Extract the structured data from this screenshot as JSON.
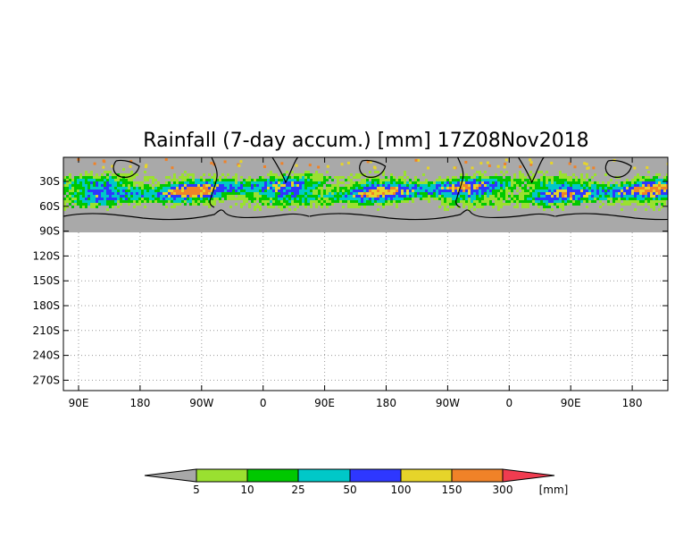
{
  "title": "Rainfall (7-day accum.) [mm] 17Z08Nov2018",
  "map": {
    "lat_ticks": [
      "30S",
      "60S",
      "90S",
      "120S",
      "150S",
      "180S",
      "210S",
      "240S",
      "270S"
    ],
    "lon_ticks": [
      "90E",
      "180",
      "90W",
      "0",
      "90E",
      "180",
      "90W",
      "0",
      "90E",
      "180"
    ],
    "colors": {
      "land_mask": "#a9a9a9",
      "coast": "#000000",
      "grid": "#9a9a9a"
    }
  },
  "colorbar": {
    "unit": "[mm]",
    "labels": [
      "5",
      "10",
      "25",
      "50",
      "100",
      "150",
      "300"
    ],
    "colors": [
      "#a8a8a8",
      "#9ae030",
      "#00c800",
      "#00c8c8",
      "#2e37ff",
      "#e6d42a",
      "#f08228",
      "#f03c50"
    ]
  }
}
